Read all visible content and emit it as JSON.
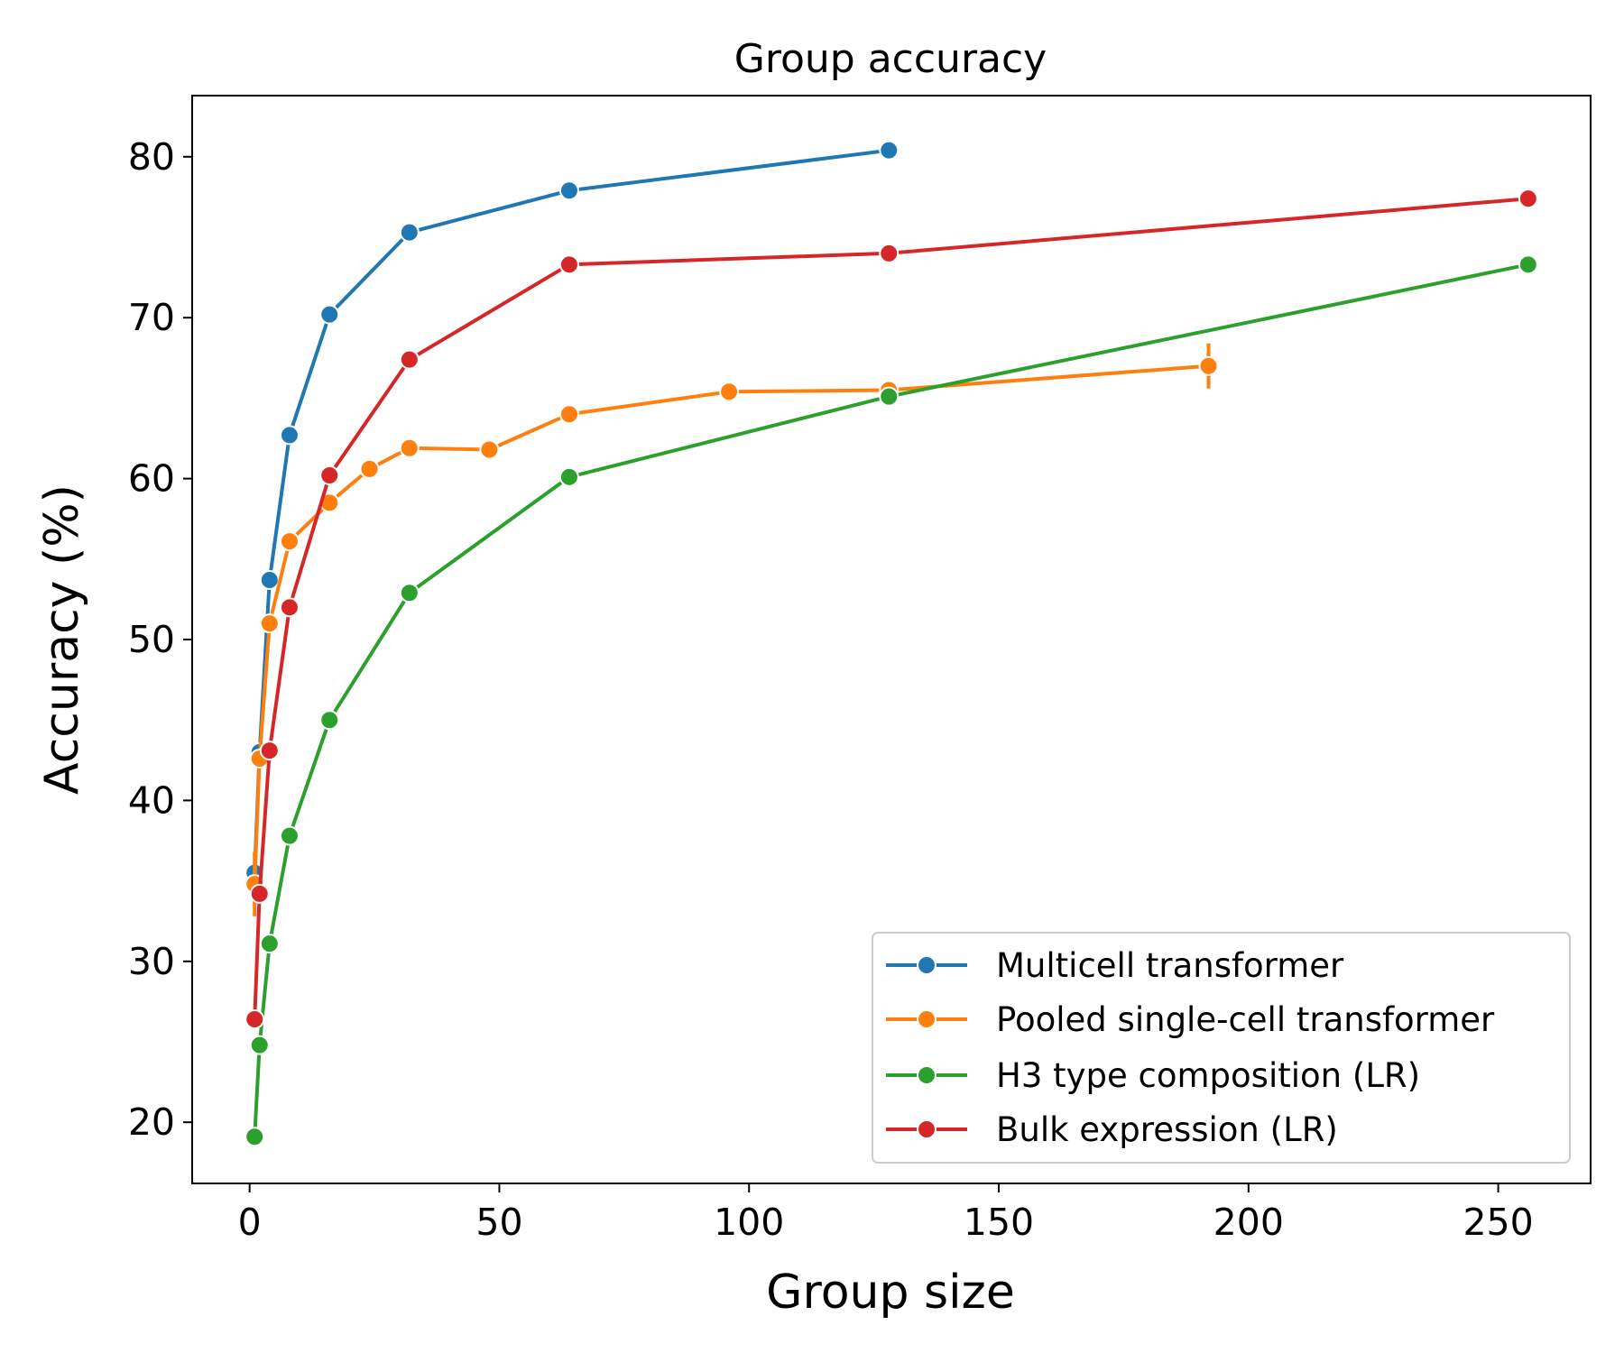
{
  "chart_data": {
    "type": "line",
    "title": "Group accuracy",
    "xlabel": "Group size",
    "ylabel": "Accuracy (%)",
    "xlim": [
      -11.5,
      268.5
    ],
    "ylim": [
      16.2,
      83.8
    ],
    "xticks": [
      0,
      50,
      100,
      150,
      200,
      250
    ],
    "xtick_labels": [
      "0",
      "50",
      "100",
      "150",
      "200",
      "250"
    ],
    "yticks": [
      20,
      30,
      40,
      50,
      60,
      70,
      80
    ],
    "ytick_labels": [
      "20",
      "30",
      "40",
      "50",
      "60",
      "70",
      "80"
    ],
    "grid": false,
    "legend_position": "lower-right",
    "series": [
      {
        "name": "Multicell transformer",
        "color": "#1f77b4",
        "x": [
          1,
          2,
          4,
          8,
          16,
          32,
          64,
          128
        ],
        "y": [
          35.5,
          43.0,
          53.7,
          62.7,
          70.2,
          75.3,
          77.9,
          80.4
        ]
      },
      {
        "name": "Pooled single-cell transformer",
        "color": "#ff7f0e",
        "x": [
          1,
          2,
          4,
          8,
          16,
          24,
          32,
          48,
          64,
          96,
          128,
          192
        ],
        "y": [
          34.8,
          42.6,
          51.0,
          56.1,
          58.5,
          60.6,
          61.9,
          61.8,
          64.0,
          65.4,
          65.5,
          67.0
        ],
        "error": [
          2.0,
          0,
          0,
          0,
          0,
          0,
          0,
          0,
          0,
          0,
          0,
          1.4
        ]
      },
      {
        "name": "H3 type composition (LR)",
        "color": "#2ca02c",
        "x": [
          1,
          2,
          4,
          8,
          16,
          32,
          64,
          128,
          256
        ],
        "y": [
          19.1,
          24.8,
          31.1,
          37.8,
          45.0,
          52.9,
          60.1,
          65.1,
          73.3
        ]
      },
      {
        "name": "Bulk expression (LR)",
        "color": "#d62728",
        "x": [
          1,
          2,
          4,
          8,
          16,
          32,
          64,
          128,
          256
        ],
        "y": [
          26.4,
          34.2,
          43.1,
          52.0,
          60.2,
          67.4,
          73.3,
          74.0,
          77.4
        ]
      }
    ]
  }
}
